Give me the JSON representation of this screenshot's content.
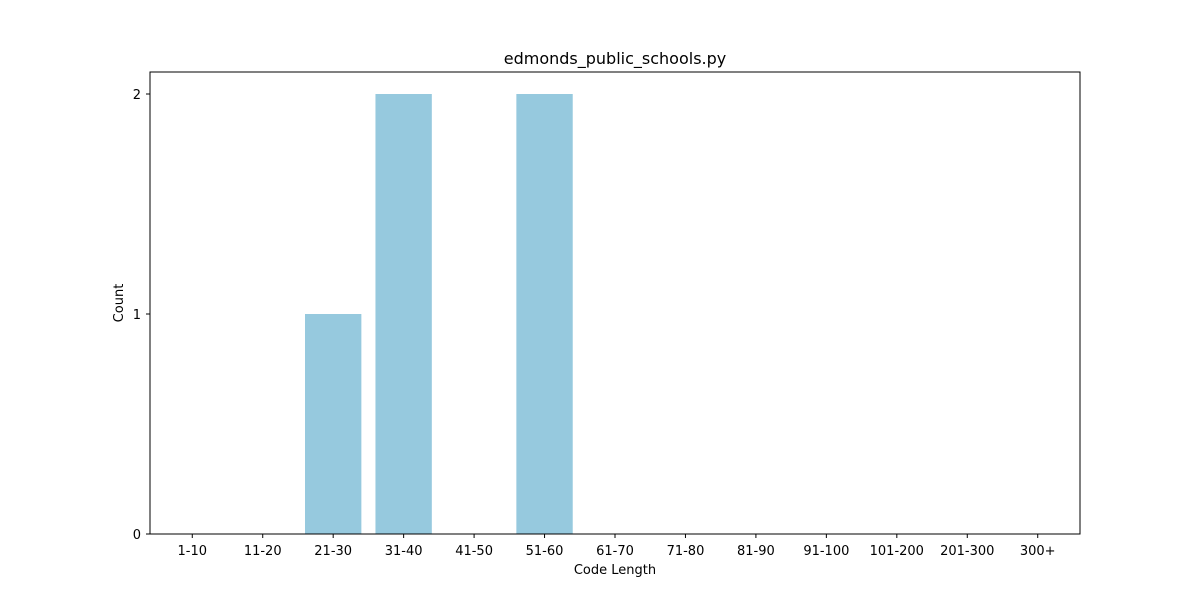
{
  "chart_data": {
    "type": "bar",
    "title": "edmonds_public_schools.py",
    "xlabel": "Code Length",
    "ylabel": "Count",
    "categories": [
      "1-10",
      "11-20",
      "21-30",
      "31-40",
      "41-50",
      "51-60",
      "61-70",
      "71-80",
      "81-90",
      "91-100",
      "101-200",
      "201-300",
      "300+"
    ],
    "values": [
      0,
      0,
      1,
      2,
      0,
      2,
      0,
      0,
      0,
      0,
      0,
      0,
      0
    ],
    "ylim": [
      0,
      2.1
    ],
    "yticks": [
      0,
      1,
      2
    ],
    "grid": false,
    "legend": "none",
    "bar_color": "#96c9de"
  }
}
